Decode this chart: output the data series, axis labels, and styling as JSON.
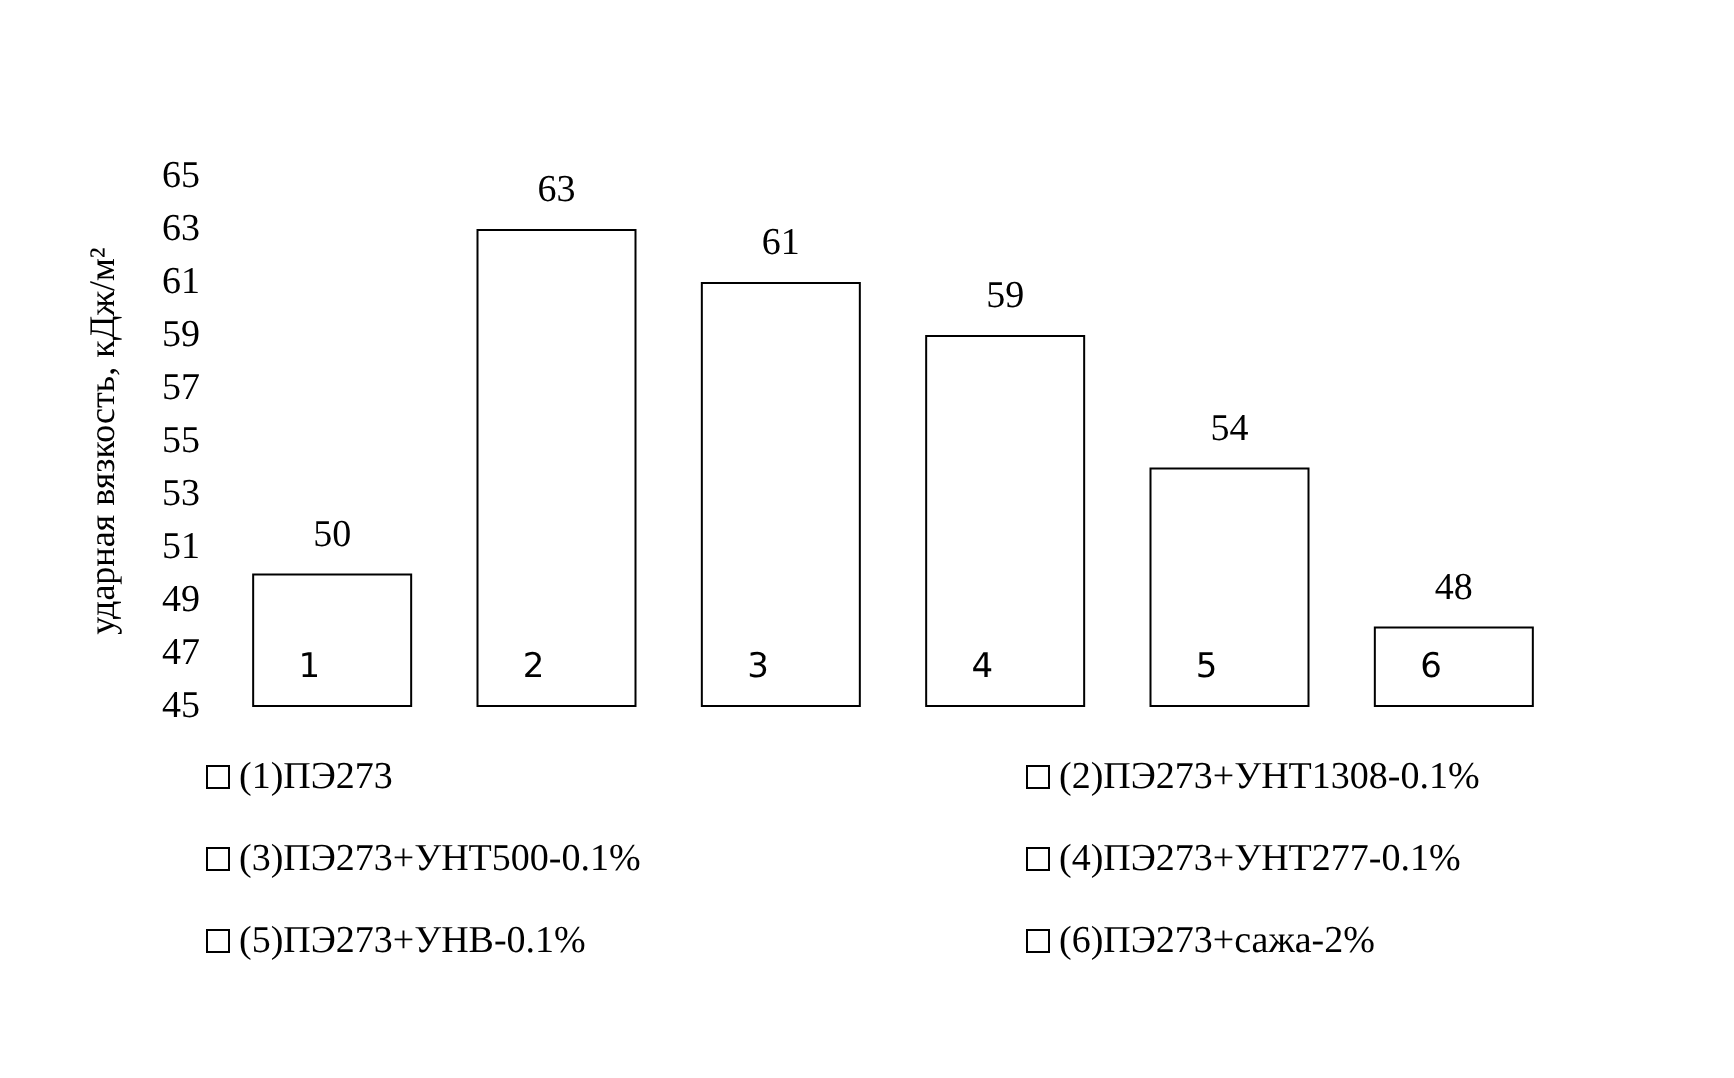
{
  "chart_data": {
    "type": "bar",
    "ylabel": "ударная вязкость, кДж/м²",
    "categories": [
      "1",
      "2",
      "3",
      "4",
      "5",
      "6"
    ],
    "series": [
      {
        "name": "(1)ПЭ273",
        "color": "#ffffff",
        "values": [
          50,
          null,
          null,
          null,
          null,
          null
        ]
      },
      {
        "name": "(2)ПЭ273+УНТ1308-0.1%",
        "color": "#ffffff",
        "values": [
          null,
          63,
          null,
          null,
          null,
          null
        ]
      },
      {
        "name": "(3)ПЭ273+УНТ500-0.1%",
        "color": "#ffffff",
        "values": [
          null,
          null,
          61,
          null,
          null,
          null
        ]
      },
      {
        "name": "(4)ПЭ273+УНТ277-0.1%",
        "color": "#ffffff",
        "values": [
          null,
          null,
          null,
          59,
          null,
          null
        ]
      },
      {
        "name": "(5)ПЭ273+УНВ-0.1%",
        "color": "#ffffff",
        "values": [
          null,
          null,
          null,
          null,
          54,
          null
        ]
      },
      {
        "name": "(6)ПЭ273+сажа-2%",
        "color": "#ffffff",
        "values": [
          null,
          null,
          null,
          null,
          null,
          48
        ]
      }
    ],
    "ylim": [
      45,
      65
    ],
    "yticks": [
      45,
      47,
      49,
      51,
      53,
      55,
      57,
      59,
      61,
      63,
      65
    ],
    "grid": false,
    "legend": "bottom",
    "data_labels": true
  }
}
